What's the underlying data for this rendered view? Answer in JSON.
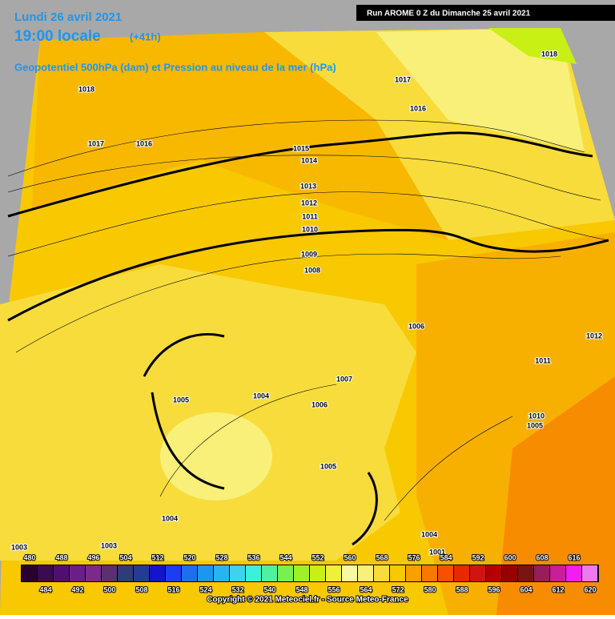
{
  "header": {
    "date": "Lundi 26 avril 2021",
    "time": "19:00 locale",
    "lead": "(+41h)",
    "subtitle": "Geopotentiel 500hPa (dam) et Pression au niveau de la mer (hPa)",
    "run": "Run AROME 0 Z du Dimanche 25 avril 2021"
  },
  "isobar_labels": [
    "1018",
    "1018",
    "1017",
    "1017",
    "1016",
    "1016",
    "1015",
    "1014",
    "1013",
    "1012",
    "1011",
    "1010",
    "1009",
    "1008",
    "1006",
    "1012",
    "1011",
    "1007",
    "1006",
    "1005",
    "1004",
    "1010",
    "1005",
    "1005",
    "1004",
    "1004",
    "1003",
    "1003",
    "1001"
  ],
  "legend": {
    "values": [
      480,
      484,
      488,
      492,
      496,
      500,
      504,
      508,
      512,
      516,
      520,
      524,
      528,
      532,
      536,
      540,
      544,
      548,
      552,
      556,
      560,
      564,
      568,
      572,
      576,
      580,
      584,
      588,
      592,
      596,
      600,
      604,
      608,
      612,
      616,
      620
    ],
    "colors": [
      "#2a0030",
      "#3c0a50",
      "#500f6e",
      "#6a1e8a",
      "#7a2a8a",
      "#5a3070",
      "#303c78",
      "#243c96",
      "#1414c8",
      "#1e3cf0",
      "#1e6ef0",
      "#1e96f0",
      "#28b4f0",
      "#3cd2f0",
      "#3cf0dc",
      "#50f0a0",
      "#78f050",
      "#a0f028",
      "#c8f014",
      "#f0f03c",
      "#f8f8a0",
      "#f8f078",
      "#f8dc3c",
      "#f8c800",
      "#f8a000",
      "#f87800",
      "#f85000",
      "#e82800",
      "#d01414",
      "#b40000",
      "#960000",
      "#7a1414",
      "#961e5a",
      "#c81e96",
      "#f01ef0",
      "#f078f0"
    ]
  },
  "footer": "Copyright © 2021 Meteociel.fr - Source Meteo-France"
}
